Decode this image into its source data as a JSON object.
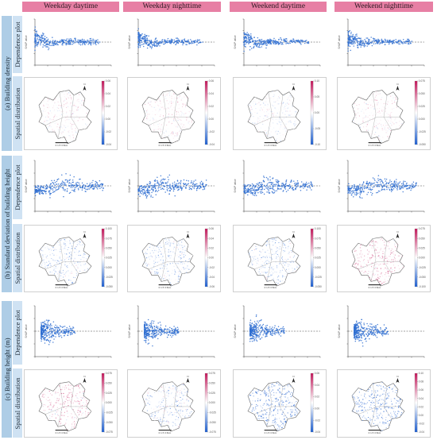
{
  "columns": [
    "Weekday daytime",
    "Weekday nighttime",
    "Weekend daytime",
    "Weekend nighttime"
  ],
  "groups": [
    {
      "label": "(a) Building density"
    },
    {
      "label": "(b) Standard deviation of building height"
    },
    {
      "label": "(c) Building height (m)"
    }
  ],
  "row_labels": {
    "dependence": "Dependence plot",
    "spatial": "Spatial distribution"
  },
  "shap_axis_label": "SHAP value",
  "map_caption": "0 1.5 3 6km",
  "north_symbol": "N",
  "colors": {
    "header": "#e77fa4",
    "group": "#aecde6",
    "row": "#cfe2f3",
    "point": "#2f6fd1",
    "positive": "#c2185b",
    "negative": "#1f5fcf"
  },
  "chart_data": [
    {
      "type": "scatter",
      "panel": "a-dep",
      "colorbars": [
        [
          "0.06",
          "0.04",
          "0.02",
          "0.00",
          "-0.02",
          "-0.04"
        ],
        [
          "0.06",
          "0.04",
          "0.02",
          "0.00",
          "-0.02",
          "-0.04"
        ],
        [
          "0.10",
          "0.05",
          "0.00",
          "-0.05",
          "-0.10"
        ],
        [
          "0.075",
          "0.050",
          "0.025",
          "0.000",
          "-0.025",
          "-0.050"
        ]
      ]
    },
    {
      "type": "scatter",
      "panel": "b-dep",
      "colorbars": [
        [
          "0.100",
          "0.075",
          "0.050",
          "0.025",
          "0.000",
          "-0.025",
          "-0.050"
        ],
        [
          "0.06",
          "0.04",
          "0.02",
          "0.00",
          "-0.02",
          "-0.04",
          "-0.06"
        ],
        [
          "0.100",
          "0.075",
          "0.050",
          "0.025",
          "0.000",
          "-0.025",
          "-0.050"
        ],
        [
          "0.075",
          "0.050",
          "0.025",
          "0.000",
          "-0.025",
          "-0.050",
          "-0.100"
        ]
      ]
    },
    {
      "type": "scatter",
      "panel": "c-dep",
      "colorbars": [
        [
          "0.075",
          "0.050",
          "0.025",
          "0.000",
          "-0.025",
          "-0.050",
          "-0.075"
        ],
        [
          "0.075",
          "0.050",
          "0.025",
          "0.000",
          "-0.025",
          "-0.050",
          "-0.075"
        ],
        [
          "0.06",
          "0.04",
          "0.02",
          "0.00",
          "-0.02",
          "-0.04"
        ],
        [
          "0.10",
          "0.08",
          "0.06",
          "0.04",
          "0.02",
          "0.00",
          "-0.02",
          "-0.04"
        ]
      ]
    }
  ]
}
